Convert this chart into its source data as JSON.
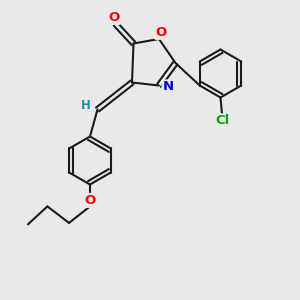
{
  "background_color": "#e9e9e9",
  "bond_color": "#1a1a1a",
  "bond_width": 1.5,
  "atom_colors": {
    "O": "#ff0000",
    "N": "#0000dd",
    "Cl": "#00aa00",
    "H": "#2090a0",
    "C": "#1a1a1a"
  },
  "font_size": 8.5,
  "fig_size": [
    3.0,
    3.0
  ],
  "dpi": 100,
  "xlim": [
    0,
    10
  ],
  "ylim": [
    0,
    10
  ]
}
